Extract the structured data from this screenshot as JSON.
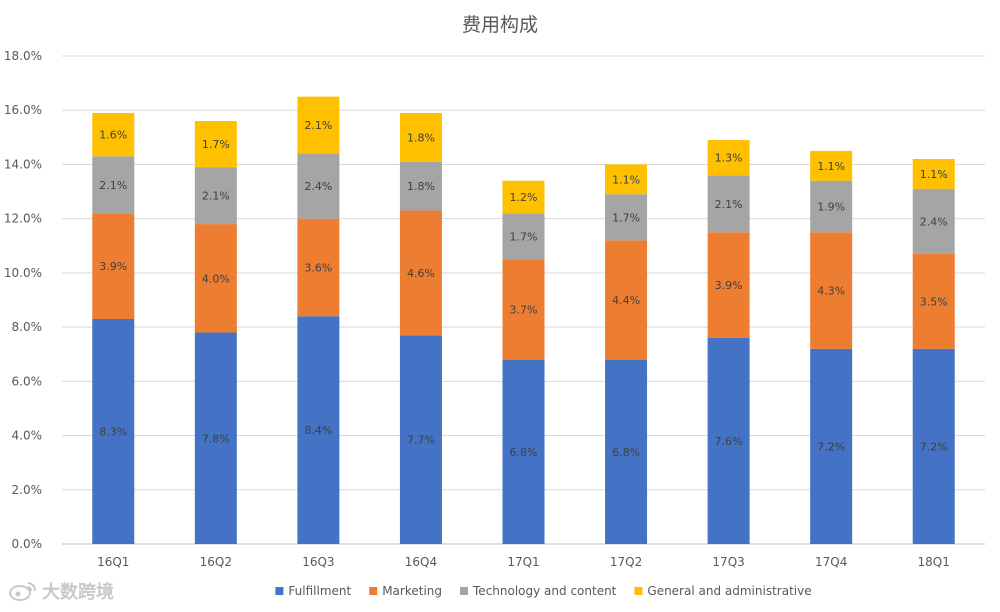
{
  "chart_data": {
    "type": "bar",
    "stacked": true,
    "title": "费用构成",
    "xlabel": "",
    "ylabel": "",
    "ylim": [
      0,
      18
    ],
    "yticks": [
      0,
      2,
      4,
      6,
      8,
      10,
      12,
      14,
      16,
      18
    ],
    "ytick_labels": [
      "0.0%",
      "2.0%",
      "4.0%",
      "6.0%",
      "8.0%",
      "10.0%",
      "12.0%",
      "14.0%",
      "16.0%",
      "18.0%"
    ],
    "grid": true,
    "legend_position": "bottom",
    "categories": [
      "16Q1",
      "16Q2",
      "16Q3",
      "16Q4",
      "17Q1",
      "17Q2",
      "17Q3",
      "17Q4",
      "18Q1"
    ],
    "series": [
      {
        "name": "Fulfillment",
        "color": "#4472C4",
        "values": [
          8.3,
          7.8,
          8.4,
          7.7,
          6.8,
          6.8,
          7.6,
          7.2,
          7.2
        ],
        "labels": [
          "8.3%",
          "7.8%",
          "8.4%",
          "7.7%",
          "6.8%",
          "6.8%",
          "7.6%",
          "7.2%",
          "7.2%"
        ]
      },
      {
        "name": "Marketing",
        "color": "#ED7D31",
        "values": [
          3.9,
          4.0,
          3.6,
          4.6,
          3.7,
          4.4,
          3.9,
          4.3,
          3.5
        ],
        "labels": [
          "3.9%",
          "4.0%",
          "3.6%",
          "4.6%",
          "3.7%",
          "4.4%",
          "3.9%",
          "4.3%",
          "3.5%"
        ]
      },
      {
        "name": "Technology and content",
        "color": "#A5A5A5",
        "values": [
          2.1,
          2.1,
          2.4,
          1.8,
          1.7,
          1.7,
          2.1,
          1.9,
          2.4
        ],
        "labels": [
          "2.1%",
          "2.1%",
          "2.4%",
          "1.8%",
          "1.7%",
          "1.7%",
          "2.1%",
          "1.9%",
          "2.4%"
        ]
      },
      {
        "name": "General and administrative",
        "color": "#FFC000",
        "values": [
          1.6,
          1.7,
          2.1,
          1.8,
          1.2,
          1.1,
          1.3,
          1.1,
          1.1
        ],
        "labels": [
          "1.6%",
          "1.7%",
          "2.1%",
          "1.8%",
          "1.2%",
          "1.1%",
          "1.3%",
          "1.1%",
          "1.1%"
        ]
      }
    ]
  },
  "watermark": {
    "text": "大数跨境",
    "icon": "weibo-logo-icon"
  }
}
